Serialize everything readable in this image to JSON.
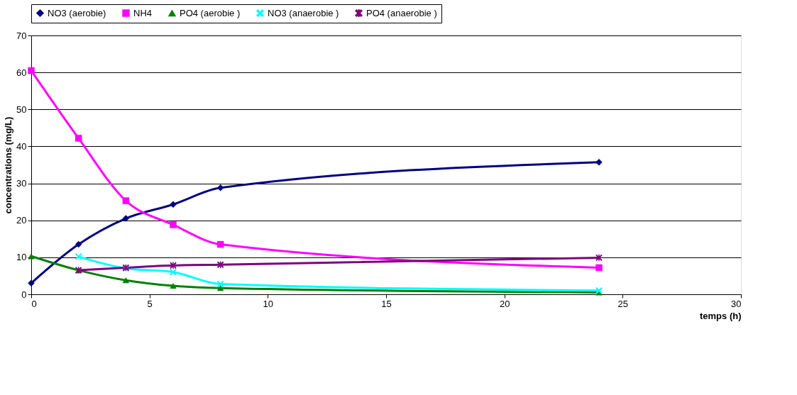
{
  "chart_data": {
    "type": "line",
    "xlabel": "temps (h)",
    "ylabel": "concentrations (mg/L)",
    "xlim": [
      0,
      30
    ],
    "xticks": [
      0,
      5,
      10,
      15,
      20,
      25,
      30
    ],
    "ylim": [
      0,
      70
    ],
    "yticks": [
      0,
      10,
      20,
      30,
      40,
      50,
      60,
      70
    ],
    "grid": "y",
    "legend": "top",
    "line_style": "solid",
    "series": [
      {
        "name": "NO3 (aerobie)",
        "color": "#000080",
        "marker": "diamond",
        "x": [
          0,
          2,
          4,
          6,
          8,
          24
        ],
        "values": [
          3,
          13.5,
          20.5,
          24.3,
          28.8,
          35.7
        ]
      },
      {
        "name": "NH4",
        "color": "#ff00ff",
        "marker": "square",
        "x": [
          0,
          2,
          4,
          6,
          8,
          24
        ],
        "values": [
          60.5,
          42.2,
          25.3,
          18.8,
          13.5,
          7.2
        ]
      },
      {
        "name": "PO4 (aerobie )",
        "color": "#008000",
        "marker": "triangle",
        "x": [
          0,
          2,
          4,
          6,
          8,
          24
        ],
        "values": [
          10.3,
          6.5,
          3.8,
          2.3,
          1.7,
          0.5
        ]
      },
      {
        "name": "NO3 (anaerobie )",
        "color": "#00ffff",
        "marker": "cross",
        "x": [
          2,
          4,
          6,
          8,
          24
        ],
        "values": [
          10.2,
          7.0,
          6.0,
          2.8,
          1.0
        ]
      },
      {
        "name": "PO4 (anaerobie )",
        "color": "#800080",
        "marker": "star",
        "x": [
          2,
          4,
          6,
          8,
          24
        ],
        "values": [
          6.5,
          7.2,
          7.8,
          8.0,
          9.9
        ]
      }
    ]
  }
}
